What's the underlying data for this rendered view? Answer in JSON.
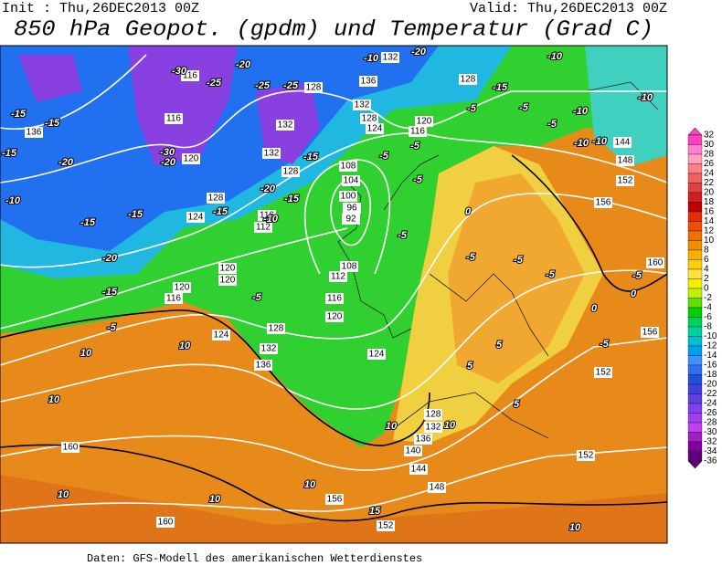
{
  "header": {
    "init": "Init : Thu,26DEC2013 00Z",
    "valid": "Valid: Thu,26DEC2013 00Z",
    "title": "850 hPa Geopot. (gpdm) und Temperatur (Grad C)"
  },
  "colorbar": {
    "labels": [
      32,
      30,
      28,
      26,
      24,
      22,
      20,
      18,
      16,
      14,
      12,
      10,
      8,
      6,
      4,
      2,
      0,
      -2,
      -4,
      -6,
      -8,
      -10,
      -12,
      -14,
      -16,
      -18,
      -20,
      -22,
      -24,
      -26,
      -28,
      -30,
      -32,
      -34,
      -36
    ],
    "colors": [
      "#ff40c0",
      "#ff80d0",
      "#ffa0c0",
      "#ff8080",
      "#f06060",
      "#e04040",
      "#d02020",
      "#c00000",
      "#e03000",
      "#f05000",
      "#f07000",
      "#f09000",
      "#f8b000",
      "#ffd000",
      "#ffe040",
      "#f0f000",
      "#c0f000",
      "#60e000",
      "#00d000",
      "#00d060",
      "#00d0a0",
      "#00c0d0",
      "#00a0f0",
      "#4090ff",
      "#3070f0",
      "#2050e0",
      "#4040e0",
      "#6040e0",
      "#8040f0",
      "#a040f0",
      "#c040f0",
      "#a020c0",
      "#8000a0",
      "#600080"
    ]
  },
  "map": {
    "geopotential_labels": [
      136,
      116,
      116,
      120,
      128,
      124,
      128,
      132,
      132,
      128,
      132,
      136,
      132,
      128,
      124,
      120,
      116,
      128,
      116,
      112,
      108,
      104,
      100,
      96,
      92,
      108,
      112,
      116,
      120,
      120,
      120,
      120,
      116,
      124,
      128,
      132,
      136,
      124,
      128,
      132,
      136,
      140,
      144,
      148,
      152,
      156,
      160,
      160,
      152,
      152,
      156,
      160,
      156,
      152,
      148,
      144
    ],
    "temperature_labels": [
      -30,
      -25,
      -20,
      -25,
      -25,
      -15,
      -15,
      -15,
      -10,
      -15,
      -20,
      -15,
      -15,
      -20,
      -30,
      -20,
      -15,
      -20,
      -15,
      -10,
      -15,
      -10,
      -20,
      -15,
      -10,
      -10,
      -5,
      -5,
      -10,
      -10,
      -10,
      -5,
      -5,
      -5,
      -5,
      -5,
      0,
      -5,
      -5,
      -5,
      -5,
      0,
      0,
      -5,
      5,
      5,
      5,
      10,
      10,
      10,
      10,
      15,
      10,
      10,
      10,
      10,
      10,
      -5,
      -5
    ]
  },
  "footer": "Daten: GFS-Modell des amerikanischen Wetterdienstes"
}
